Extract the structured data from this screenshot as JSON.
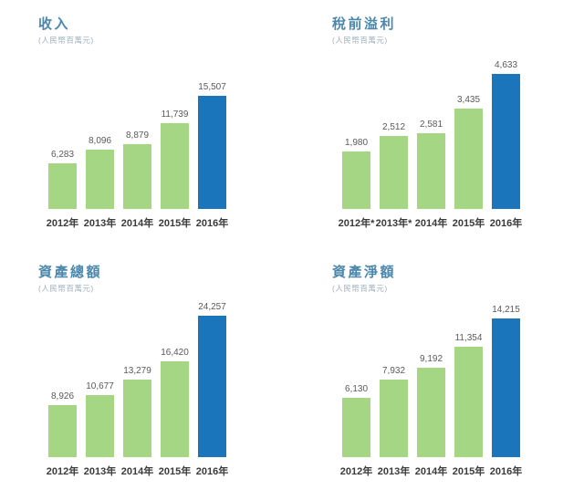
{
  "page": {
    "background": "#ffffff"
  },
  "colors": {
    "bar_green": "#a5d683",
    "bar_blue": "#1b75bb",
    "title_blue": "#4b87ad",
    "subtitle_gray": "#9fafbc",
    "value_text": "#58595b",
    "xlabel_text": "#3a3a3a"
  },
  "chart_data": [
    {
      "type": "bar",
      "title": "收入",
      "subtitle": "(人民幣百萬元)",
      "categories": [
        "2012年",
        "2013年",
        "2014年",
        "2015年",
        "2016年"
      ],
      "values": [
        6283,
        8096,
        8879,
        11739,
        15507
      ],
      "value_labels": [
        "6,283",
        "8,096",
        "8,879",
        "11,739",
        "15,507"
      ],
      "highlight_index": 4,
      "ylim": [
        0,
        20000
      ],
      "grid": false,
      "legend": null
    },
    {
      "type": "bar",
      "title": "稅前溢利",
      "subtitle": "(人民幣百萬元)",
      "categories": [
        "2012年*",
        "2013年*",
        "2014年",
        "2015年",
        "2016年"
      ],
      "values": [
        1980,
        2512,
        2581,
        3435,
        4633
      ],
      "value_labels": [
        "1,980",
        "2,512",
        "2,581",
        "3,435",
        "4,633"
      ],
      "highlight_index": 4,
      "ylim": [
        0,
        5000
      ],
      "grid": false,
      "legend": null
    },
    {
      "type": "bar",
      "title": "資產總額",
      "subtitle": "(人民幣百萬元)",
      "categories": [
        "2012年",
        "2013年",
        "2014年",
        "2015年",
        "2016年"
      ],
      "values": [
        8926,
        10677,
        13279,
        16420,
        24257
      ],
      "value_labels": [
        "8,926",
        "10,677",
        "13,279",
        "16,420",
        "24,257"
      ],
      "highlight_index": 4,
      "ylim": [
        0,
        25000
      ],
      "grid": false,
      "legend": null
    },
    {
      "type": "bar",
      "title": "資產淨額",
      "subtitle": "(人民幣百萬元)",
      "categories": [
        "2012年",
        "2013年",
        "2014年",
        "2015年",
        "2016年"
      ],
      "values": [
        6130,
        7932,
        9192,
        11354,
        14215
      ],
      "value_labels": [
        "6,130",
        "7,932",
        "9,192",
        "11,354",
        "14,215"
      ],
      "highlight_index": 4,
      "ylim": [
        0,
        15000
      ],
      "grid": false,
      "legend": null
    }
  ]
}
